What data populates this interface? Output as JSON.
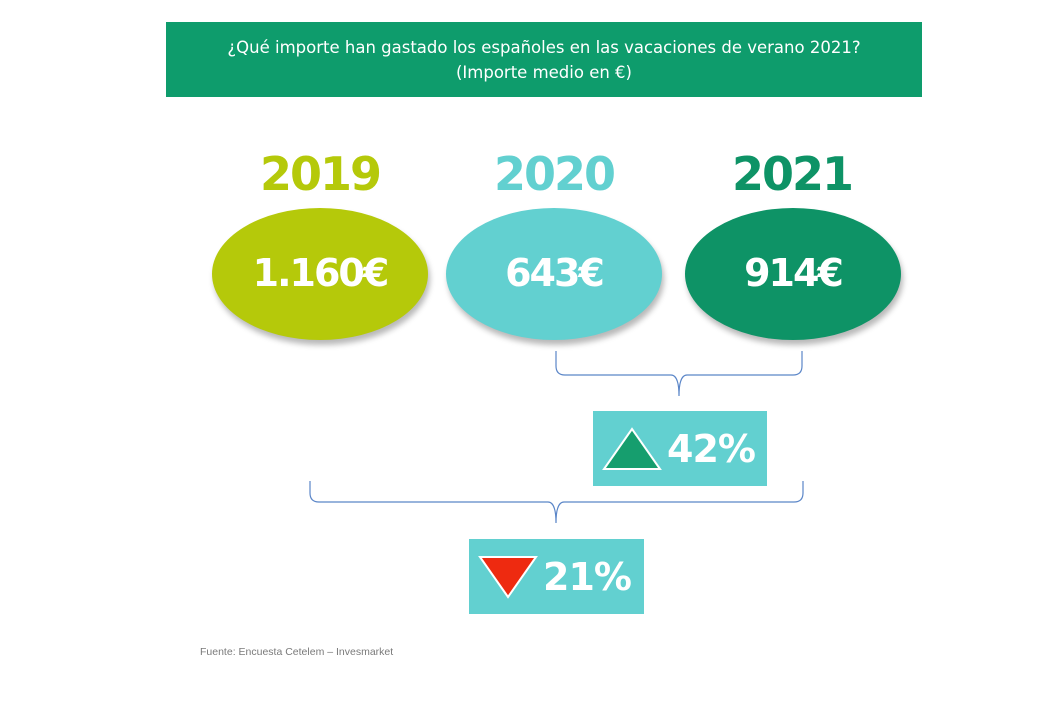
{
  "header": {
    "title_line1": "¿Qué importe han gastado los españoles en las vacaciones de verano 2021?",
    "title_line2": "(Importe medio en €)",
    "background_color": "#0e9c6c"
  },
  "chart_data": {
    "type": "table",
    "title": "¿Qué importe han gastado los españoles en las vacaciones de verano 2021?",
    "subtitle": "(Importe medio en €)",
    "categories": [
      "2019",
      "2020",
      "2021"
    ],
    "values": [
      1160,
      643,
      914
    ],
    "value_labels": [
      "1.160€",
      "643€",
      "914€"
    ],
    "colors": [
      "#b5c90a",
      "#62d0d0",
      "#0e9366"
    ],
    "changes": [
      {
        "from": "2020",
        "to": "2021",
        "label": "42%",
        "direction": "up",
        "arrow_color": "#169e6e"
      },
      {
        "from": "2019",
        "to": "2021",
        "label": "21%",
        "direction": "down",
        "arrow_color": "#ee2a10"
      }
    ],
    "change_box_color": "#62d0d0"
  },
  "footer": {
    "source": "Fuente: Encuesta Cetelem – Invesmarket"
  }
}
